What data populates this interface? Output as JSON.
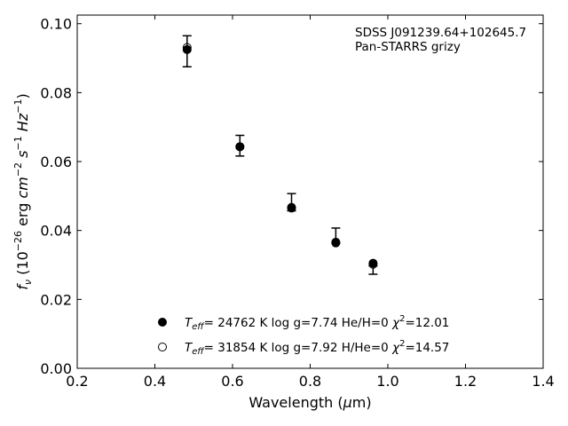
{
  "chart_data": {
    "type": "scatter",
    "xlabel": "Wavelength (μm)",
    "ylabel": "fν (10⁻²⁶ erg cm⁻² s⁻¹ Hz⁻¹)",
    "xlim": [
      0.2,
      1.4
    ],
    "ylim": [
      0.0,
      0.1025
    ],
    "x_ticks": [
      0.2,
      0.4,
      0.6,
      0.8,
      1.0,
      1.2,
      1.4
    ],
    "y_ticks": [
      0.0,
      0.02,
      0.04,
      0.06,
      0.08,
      0.1
    ],
    "x_tick_labels": [
      "0.2",
      "0.4",
      "0.6",
      "0.8",
      "1.0",
      "1.2",
      "1.4"
    ],
    "y_tick_labels": [
      "0.00",
      "0.02",
      "0.04",
      "0.06",
      "0.08",
      "0.10"
    ],
    "grid": false,
    "legend_position": "bottom-center",
    "annotations": [
      "SDSS J091239.64+102645.7",
      "Pan-STARRS grizy"
    ],
    "observed": {
      "x": [
        0.483,
        0.619,
        0.752,
        0.866,
        0.962
      ],
      "y": [
        0.092,
        0.0646,
        0.0482,
        0.0385,
        0.0285
      ],
      "yerr": [
        0.0045,
        0.003,
        0.0025,
        0.0022,
        0.0012
      ]
    },
    "series": [
      {
        "name": "Teff= 24762 K  log g=7.74  He/H=0  χ²=12.01",
        "marker": "filled-circle",
        "x": [
          0.483,
          0.619,
          0.752,
          0.866,
          0.962
        ],
        "y": [
          0.0925,
          0.0643,
          0.0465,
          0.0364,
          0.0305
        ]
      },
      {
        "name": "Teff= 31854 K  log g=7.92  H/He=0  χ²=14.57",
        "marker": "open-circle",
        "x": [
          0.483,
          0.619,
          0.752,
          0.866,
          0.962
        ],
        "y": [
          0.0931,
          0.0643,
          0.0467,
          0.0366,
          0.0302
        ]
      }
    ],
    "colors": {
      "marker": "#000000",
      "axes": "#000000",
      "background": "#ffffff"
    }
  }
}
